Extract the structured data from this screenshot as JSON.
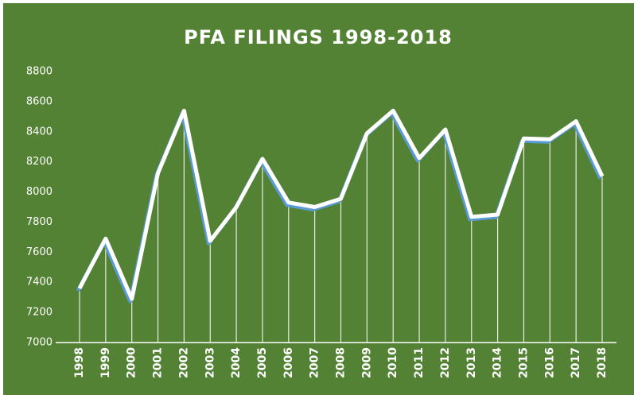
{
  "chart_data": {
    "type": "line",
    "title": "PFA FILINGS 1998-2018",
    "categories": [
      "1998",
      "1999",
      "2000",
      "2001",
      "2002",
      "2003",
      "2004",
      "2005",
      "2006",
      "2007",
      "2008",
      "2009",
      "2010",
      "2011",
      "2012",
      "2013",
      "2014",
      "2015",
      "2016",
      "2017",
      "2018"
    ],
    "values": [
      7360,
      7690,
      7290,
      8125,
      8540,
      7675,
      7900,
      8220,
      7930,
      7900,
      7955,
      8390,
      8540,
      8225,
      8415,
      7835,
      7850,
      8355,
      8350,
      8470,
      8105
    ],
    "color": "#ffffff",
    "ylim": [
      7000,
      8800
    ],
    "yticks": [
      7000,
      7200,
      7400,
      7600,
      7800,
      8000,
      8200,
      8400,
      8600,
      8800
    ],
    "drop_lines": true
  }
}
